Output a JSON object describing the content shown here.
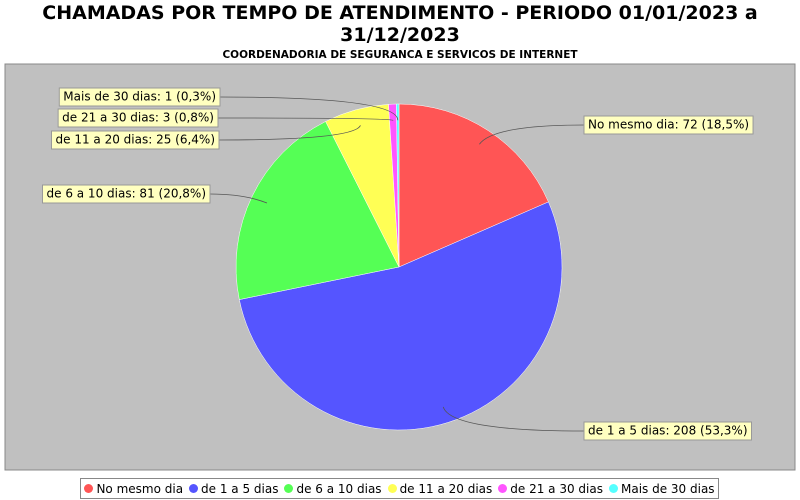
{
  "chart_data": {
    "type": "pie",
    "title": "CHAMADAS POR TEMPO DE ATENDIMENTO - PERIODO 01/01/2023 a 31/12/2023",
    "subtitle": "COORDENADORIA DE SEGURANCA E SERVICOS DE INTERNET",
    "categories": [
      "No mesmo dia",
      "de 1 a 5 dias",
      "de 6 a 10 dias",
      "de 11 a 20 dias",
      "de 21 a 30 dias",
      "Mais de 30 dias"
    ],
    "values": [
      72,
      208,
      81,
      25,
      3,
      1
    ],
    "value_labels": [
      "No mesmo dia: 72 (18,5%)",
      "de 1 a 5 dias: 208 (53,3%)",
      "de 6 a 10 dias: 81 (20,8%)",
      "de 11 a 20 dias: 25 (6,4%)",
      "de 21 a 30 dias: 3 (0,8%)",
      "Mais de 30 dias: 1 (0,3%)"
    ],
    "colors": [
      "#ff5555",
      "#5555ff",
      "#55ff55",
      "#ffff55",
      "#ff55ff",
      "#55ffff"
    ]
  }
}
